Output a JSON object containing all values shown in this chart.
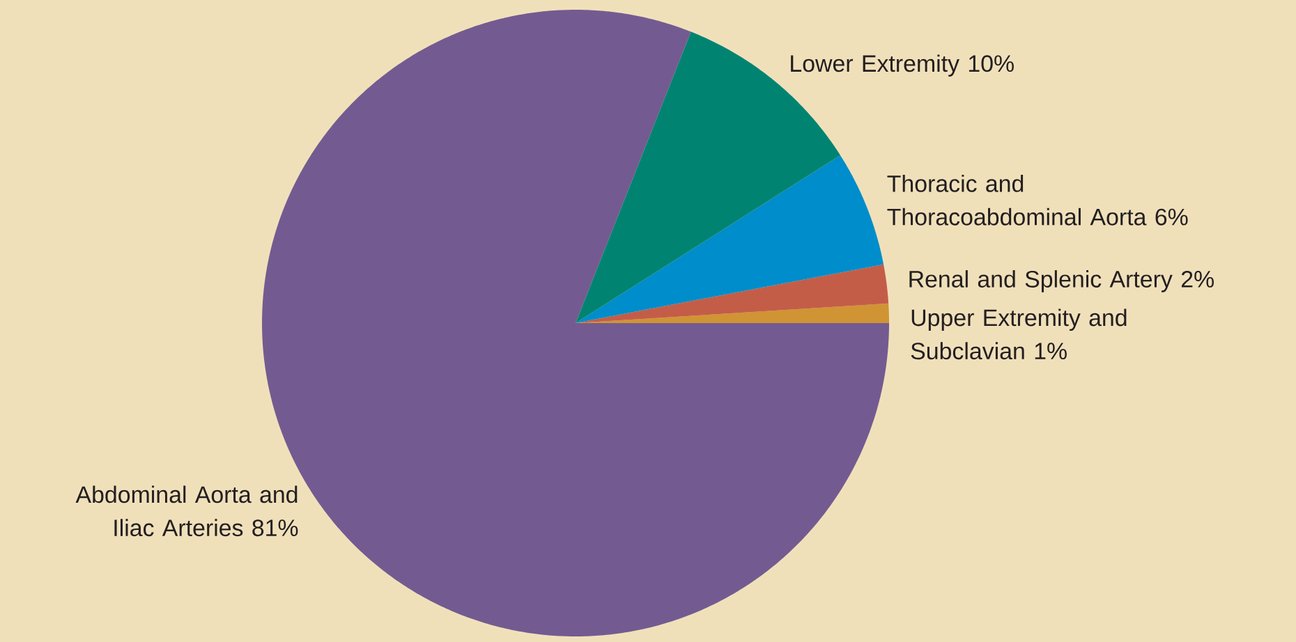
{
  "chart_data": {
    "type": "pie",
    "categories": [
      "Upper Extremity and Subclavian",
      "Renal and Splenic Artery",
      "Thoracic and Thoracoabdominal Aorta",
      "Lower Extremity",
      "Abdominal Aorta and Iliac Arteries"
    ],
    "values": [
      1,
      2,
      6,
      10,
      81
    ],
    "value_labels": [
      "1%",
      "2%",
      "6%",
      "10%",
      "81%"
    ],
    "colors": [
      "#d09434",
      "#c45d48",
      "#008dcb",
      "#008471",
      "#735b91"
    ]
  }
}
